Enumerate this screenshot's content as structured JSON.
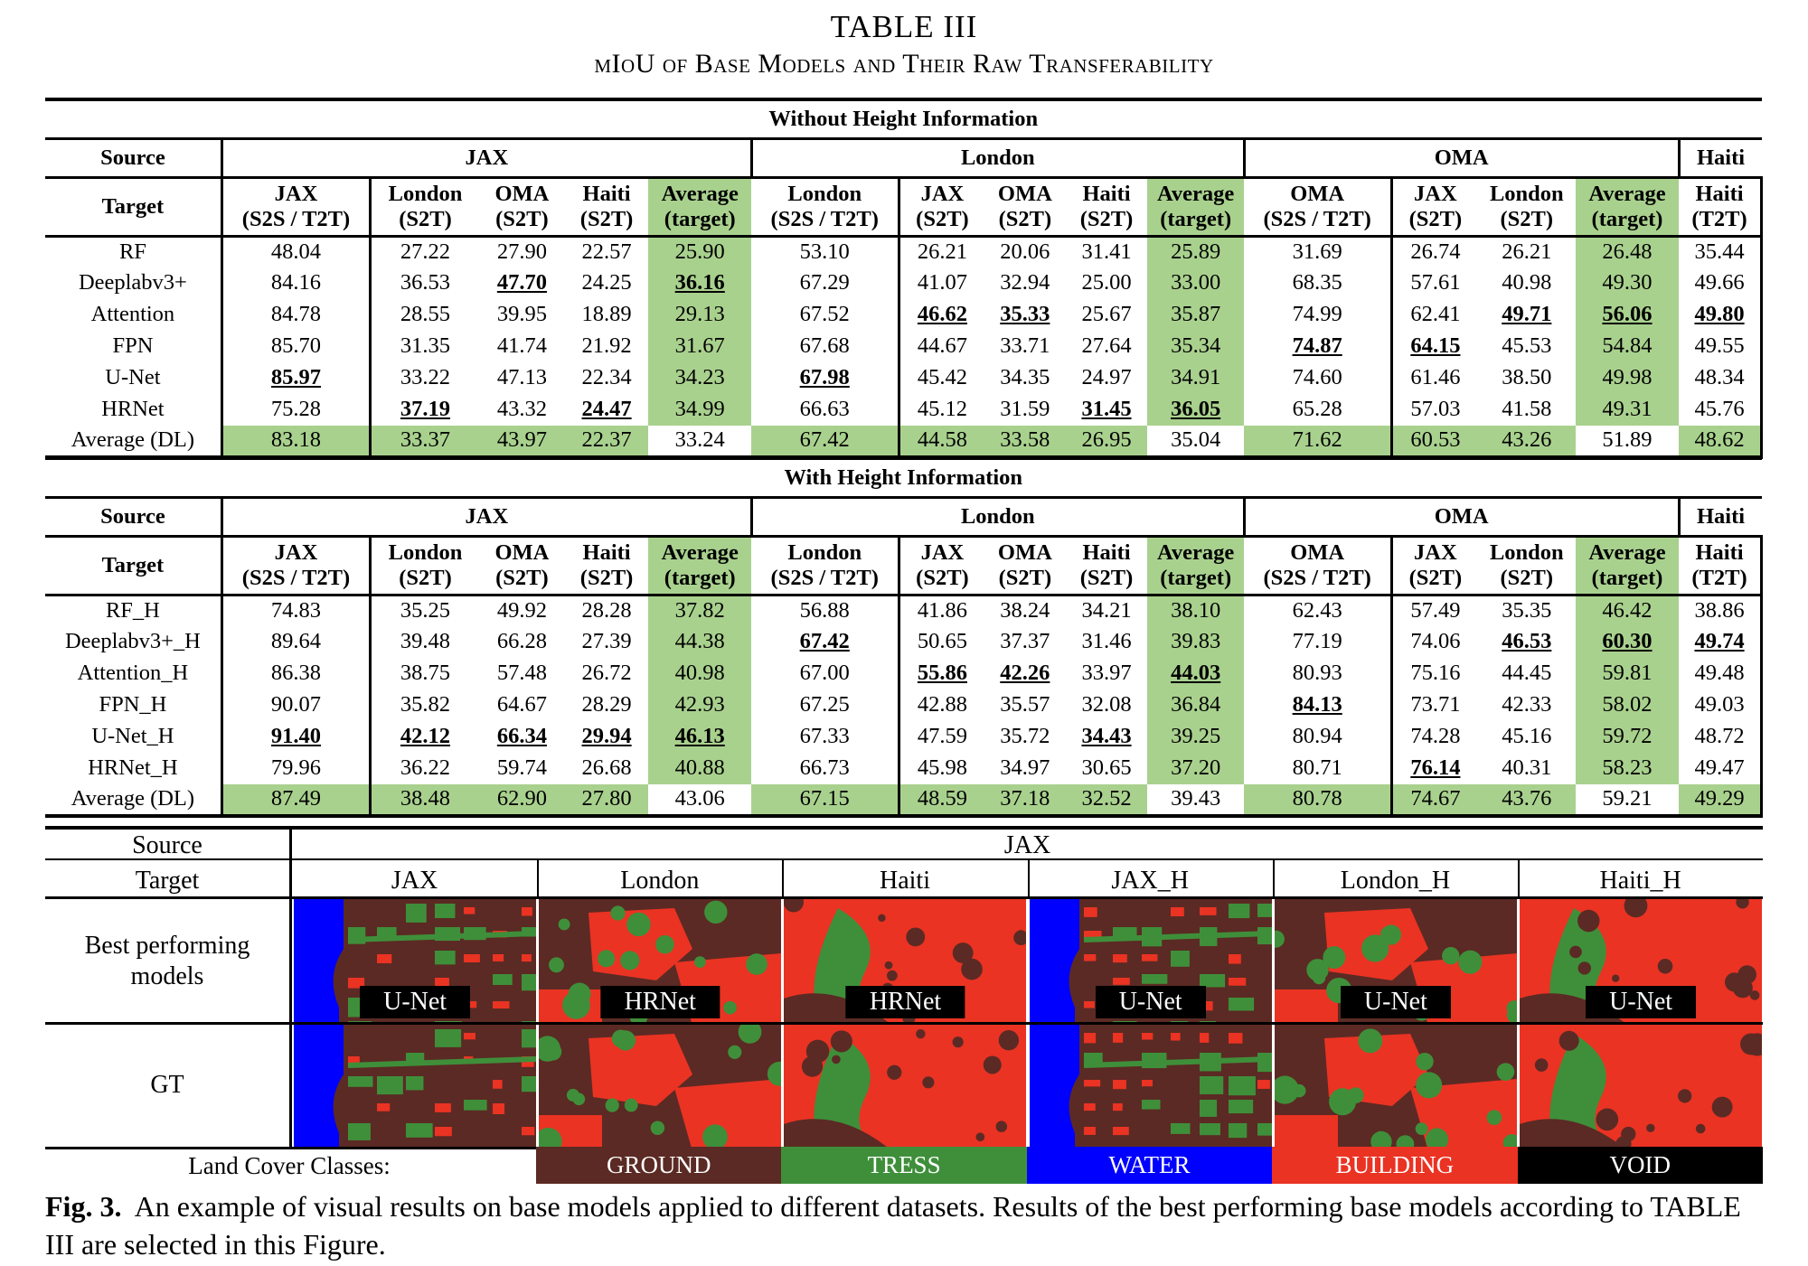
{
  "title": "TABLE III",
  "subtitle": "mIoU of Base Models and Their Raw Transferability",
  "colors": {
    "highlight": "#a9d18e",
    "ground": "#5b2a24",
    "trees": "#3f8f3a",
    "water": "#0000ff",
    "building": "#ea3323",
    "void": "#000000"
  },
  "sections": [
    {
      "heading": "Without Height Information",
      "source_label": "Source",
      "target_label": "Target",
      "sources": [
        "JAX",
        "London",
        "OMA",
        "Haiti"
      ],
      "targets": [
        [
          "JAX",
          "(S2S / T2T)"
        ],
        [
          "London",
          "(S2T)"
        ],
        [
          "OMA",
          "(S2T)"
        ],
        [
          "Haiti",
          "(S2T)"
        ],
        [
          "Average",
          "(target)"
        ],
        [
          "London",
          "(S2S / T2T)"
        ],
        [
          "JAX",
          "(S2T)"
        ],
        [
          "OMA",
          "(S2T)"
        ],
        [
          "Haiti",
          "(S2T)"
        ],
        [
          "Average",
          "(target)"
        ],
        [
          "OMA",
          "(S2S / T2T)"
        ],
        [
          "JAX",
          "(S2T)"
        ],
        [
          "London",
          "(S2T)"
        ],
        [
          "Average",
          "(target)"
        ],
        [
          "Haiti",
          "(T2T)"
        ]
      ],
      "rows": [
        {
          "label": "RF",
          "values": [
            "48.04",
            "27.22",
            "27.90",
            "22.57",
            "25.90",
            "53.10",
            "26.21",
            "20.06",
            "31.41",
            "25.89",
            "31.69",
            "26.74",
            "26.21",
            "26.48",
            "35.44"
          ]
        },
        {
          "label": "Deeplabv3+",
          "values": [
            "84.16",
            "36.53",
            "47.70",
            "24.25",
            "36.16",
            "67.29",
            "41.07",
            "32.94",
            "25.00",
            "33.00",
            "68.35",
            "57.61",
            "40.98",
            "49.30",
            "49.66"
          ]
        },
        {
          "label": "Attention",
          "values": [
            "84.78",
            "28.55",
            "39.95",
            "18.89",
            "29.13",
            "67.52",
            "46.62",
            "35.33",
            "25.67",
            "35.87",
            "74.99",
            "62.41",
            "49.71",
            "56.06",
            "49.80"
          ]
        },
        {
          "label": "FPN",
          "values": [
            "85.70",
            "31.35",
            "41.74",
            "21.92",
            "31.67",
            "67.68",
            "44.67",
            "33.71",
            "27.64",
            "35.34",
            "74.87",
            "64.15",
            "45.53",
            "54.84",
            "49.55"
          ]
        },
        {
          "label": "U-Net",
          "values": [
            "85.97",
            "33.22",
            "47.13",
            "22.34",
            "34.23",
            "67.98",
            "45.42",
            "34.35",
            "24.97",
            "34.91",
            "74.60",
            "61.46",
            "38.50",
            "49.98",
            "48.34"
          ]
        },
        {
          "label": "HRNet",
          "values": [
            "75.28",
            "37.19",
            "43.32",
            "24.47",
            "34.99",
            "66.63",
            "45.12",
            "31.59",
            "31.45",
            "36.05",
            "65.28",
            "57.03",
            "41.58",
            "49.31",
            "45.76"
          ]
        },
        {
          "label": "Average (DL)",
          "values": [
            "83.18",
            "33.37",
            "43.97",
            "22.37",
            "33.24",
            "67.42",
            "44.58",
            "33.58",
            "26.95",
            "35.04",
            "71.62",
            "60.53",
            "43.26",
            "51.89",
            "48.62"
          ]
        }
      ],
      "bold_cells": [
        [
          1,
          2
        ],
        [
          1,
          4
        ],
        [
          2,
          6
        ],
        [
          2,
          7
        ],
        [
          2,
          12
        ],
        [
          2,
          13
        ],
        [
          2,
          14
        ],
        [
          3,
          10
        ],
        [
          3,
          11
        ],
        [
          4,
          0
        ],
        [
          4,
          5
        ],
        [
          5,
          1
        ],
        [
          5,
          3
        ],
        [
          5,
          8
        ],
        [
          5,
          9
        ]
      ]
    },
    {
      "heading": "With Height Information",
      "source_label": "Source",
      "target_label": "Target",
      "sources": [
        "JAX",
        "London",
        "OMA",
        "Haiti"
      ],
      "targets": [
        [
          "JAX",
          "(S2S / T2T)"
        ],
        [
          "London",
          "(S2T)"
        ],
        [
          "OMA",
          "(S2T)"
        ],
        [
          "Haiti",
          "(S2T)"
        ],
        [
          "Average",
          "(target)"
        ],
        [
          "London",
          "(S2S / T2T)"
        ],
        [
          "JAX",
          "(S2T)"
        ],
        [
          "OMA",
          "(S2T)"
        ],
        [
          "Haiti",
          "(S2T)"
        ],
        [
          "Average",
          "(target)"
        ],
        [
          "OMA",
          "(S2S / T2T)"
        ],
        [
          "JAX",
          "(S2T)"
        ],
        [
          "London",
          "(S2T)"
        ],
        [
          "Average",
          "(target)"
        ],
        [
          "Haiti",
          "(T2T)"
        ]
      ],
      "rows": [
        {
          "label": "RF_H",
          "values": [
            "74.83",
            "35.25",
            "49.92",
            "28.28",
            "37.82",
            "56.88",
            "41.86",
            "38.24",
            "34.21",
            "38.10",
            "62.43",
            "57.49",
            "35.35",
            "46.42",
            "38.86"
          ]
        },
        {
          "label": "Deeplabv3+_H",
          "values": [
            "89.64",
            "39.48",
            "66.28",
            "27.39",
            "44.38",
            "67.42",
            "50.65",
            "37.37",
            "31.46",
            "39.83",
            "77.19",
            "74.06",
            "46.53",
            "60.30",
            "49.74"
          ]
        },
        {
          "label": "Attention_H",
          "values": [
            "86.38",
            "38.75",
            "57.48",
            "26.72",
            "40.98",
            "67.00",
            "55.86",
            "42.26",
            "33.97",
            "44.03",
            "80.93",
            "75.16",
            "44.45",
            "59.81",
            "49.48"
          ]
        },
        {
          "label": "FPN_H",
          "values": [
            "90.07",
            "35.82",
            "64.67",
            "28.29",
            "42.93",
            "67.25",
            "42.88",
            "35.57",
            "32.08",
            "36.84",
            "84.13",
            "73.71",
            "42.33",
            "58.02",
            "49.03"
          ]
        },
        {
          "label": "U-Net_H",
          "values": [
            "91.40",
            "42.12",
            "66.34",
            "29.94",
            "46.13",
            "67.33",
            "47.59",
            "35.72",
            "34.43",
            "39.25",
            "80.94",
            "74.28",
            "45.16",
            "59.72",
            "48.72"
          ]
        },
        {
          "label": "HRNet_H",
          "values": [
            "79.96",
            "36.22",
            "59.74",
            "26.68",
            "40.88",
            "66.73",
            "45.98",
            "34.97",
            "30.65",
            "37.20",
            "80.71",
            "76.14",
            "40.31",
            "58.23",
            "49.47"
          ]
        },
        {
          "label": "Average (DL)",
          "values": [
            "87.49",
            "38.48",
            "62.90",
            "27.80",
            "43.06",
            "67.15",
            "48.59",
            "37.18",
            "32.52",
            "39.43",
            "80.78",
            "74.67",
            "43.76",
            "59.21",
            "49.29"
          ]
        }
      ],
      "bold_cells": [
        [
          1,
          5
        ],
        [
          1,
          12
        ],
        [
          1,
          13
        ],
        [
          1,
          14
        ],
        [
          2,
          6
        ],
        [
          2,
          7
        ],
        [
          2,
          9
        ],
        [
          3,
          10
        ],
        [
          4,
          0
        ],
        [
          4,
          1
        ],
        [
          4,
          2
        ],
        [
          4,
          3
        ],
        [
          4,
          4
        ],
        [
          4,
          8
        ],
        [
          5,
          11
        ]
      ]
    }
  ],
  "figure": {
    "source_label": "Source",
    "source_value": "JAX",
    "target_label": "Target",
    "targets": [
      "JAX",
      "London",
      "Haiti",
      "JAX_H",
      "London_H",
      "Haiti_H"
    ],
    "row1_label": "Best performing models",
    "row2_label": "GT",
    "model_tags": [
      "U-Net",
      "HRNet",
      "HRNet",
      "U-Net",
      "U-Net",
      "U-Net"
    ],
    "legend_label": "Land Cover Classes:",
    "legend": [
      "GROUND",
      "TRESS",
      "WATER",
      "BUILDING",
      "VOID"
    ]
  },
  "caption": {
    "label": "Fig. 3.",
    "text": "An example of visual results on base models applied to different datasets. Results of the best performing base models according to TABLE III are selected in this Figure."
  }
}
